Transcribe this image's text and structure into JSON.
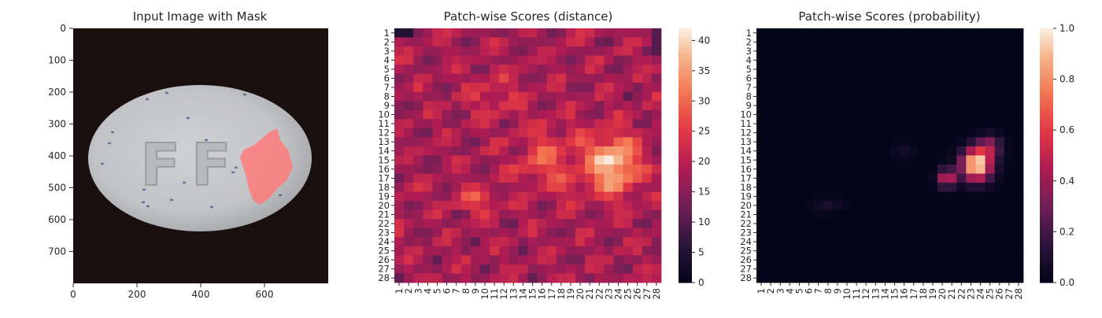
{
  "chart_data": [
    {
      "type": "image",
      "title": "Input Image with Mask",
      "xticks": [
        "0",
        "200",
        "400",
        "600"
      ],
      "yticks": [
        "0",
        "100",
        "200",
        "300",
        "400",
        "500",
        "600",
        "700"
      ],
      "xlim": [
        0,
        800
      ],
      "ylim": [
        800,
        0
      ],
      "embossed_text": "FF"
    },
    {
      "type": "heatmap",
      "title": "Patch-wise Scores (distance)",
      "colormap": "rocket",
      "colorbar_range": [
        0,
        42
      ],
      "colorbar_ticks": [
        "0",
        "5",
        "10",
        "15",
        "20",
        "25",
        "30",
        "35",
        "40"
      ],
      "row_labels": [
        "1",
        "2",
        "3",
        "4",
        "5",
        "6",
        "7",
        "8",
        "9",
        "10",
        "11",
        "12",
        "13",
        "14",
        "15",
        "16",
        "17",
        "18",
        "19",
        "20",
        "21",
        "22",
        "23",
        "24",
        "25",
        "26",
        "27",
        "28"
      ],
      "col_labels": [
        "1",
        "2",
        "3",
        "4",
        "5",
        "6",
        "7",
        "8",
        "9",
        "10",
        "11",
        "12",
        "13",
        "14",
        "15",
        "16",
        "17",
        "18",
        "19",
        "20",
        "21",
        "22",
        "23",
        "24",
        "25",
        "26",
        "27",
        "28"
      ]
    },
    {
      "type": "heatmap",
      "title": "Patch-wise Scores (probability)",
      "colormap": "rocket",
      "colorbar_range": [
        0,
        1
      ],
      "colorbar_ticks": [
        "0.0",
        "0.2",
        "0.4",
        "0.6",
        "0.8",
        "1.0"
      ],
      "row_labels": [
        "1",
        "2",
        "3",
        "4",
        "5",
        "6",
        "7",
        "8",
        "9",
        "10",
        "11",
        "12",
        "13",
        "14",
        "15",
        "16",
        "17",
        "18",
        "19",
        "20",
        "21",
        "22",
        "23",
        "24",
        "25",
        "26",
        "27",
        "28"
      ],
      "col_labels": [
        "1",
        "2",
        "3",
        "4",
        "5",
        "6",
        "7",
        "8",
        "9",
        "10",
        "11",
        "12",
        "13",
        "14",
        "15",
        "16",
        "17",
        "18",
        "19",
        "20",
        "21",
        "22",
        "23",
        "24",
        "25",
        "26",
        "27",
        "28"
      ]
    }
  ],
  "colors": {
    "background": "#ffffff",
    "photo_background": "#1a0f0f",
    "pill": "#c8c9cc",
    "mask": "#ff7a7a",
    "speckle": "#5a5a8c"
  }
}
